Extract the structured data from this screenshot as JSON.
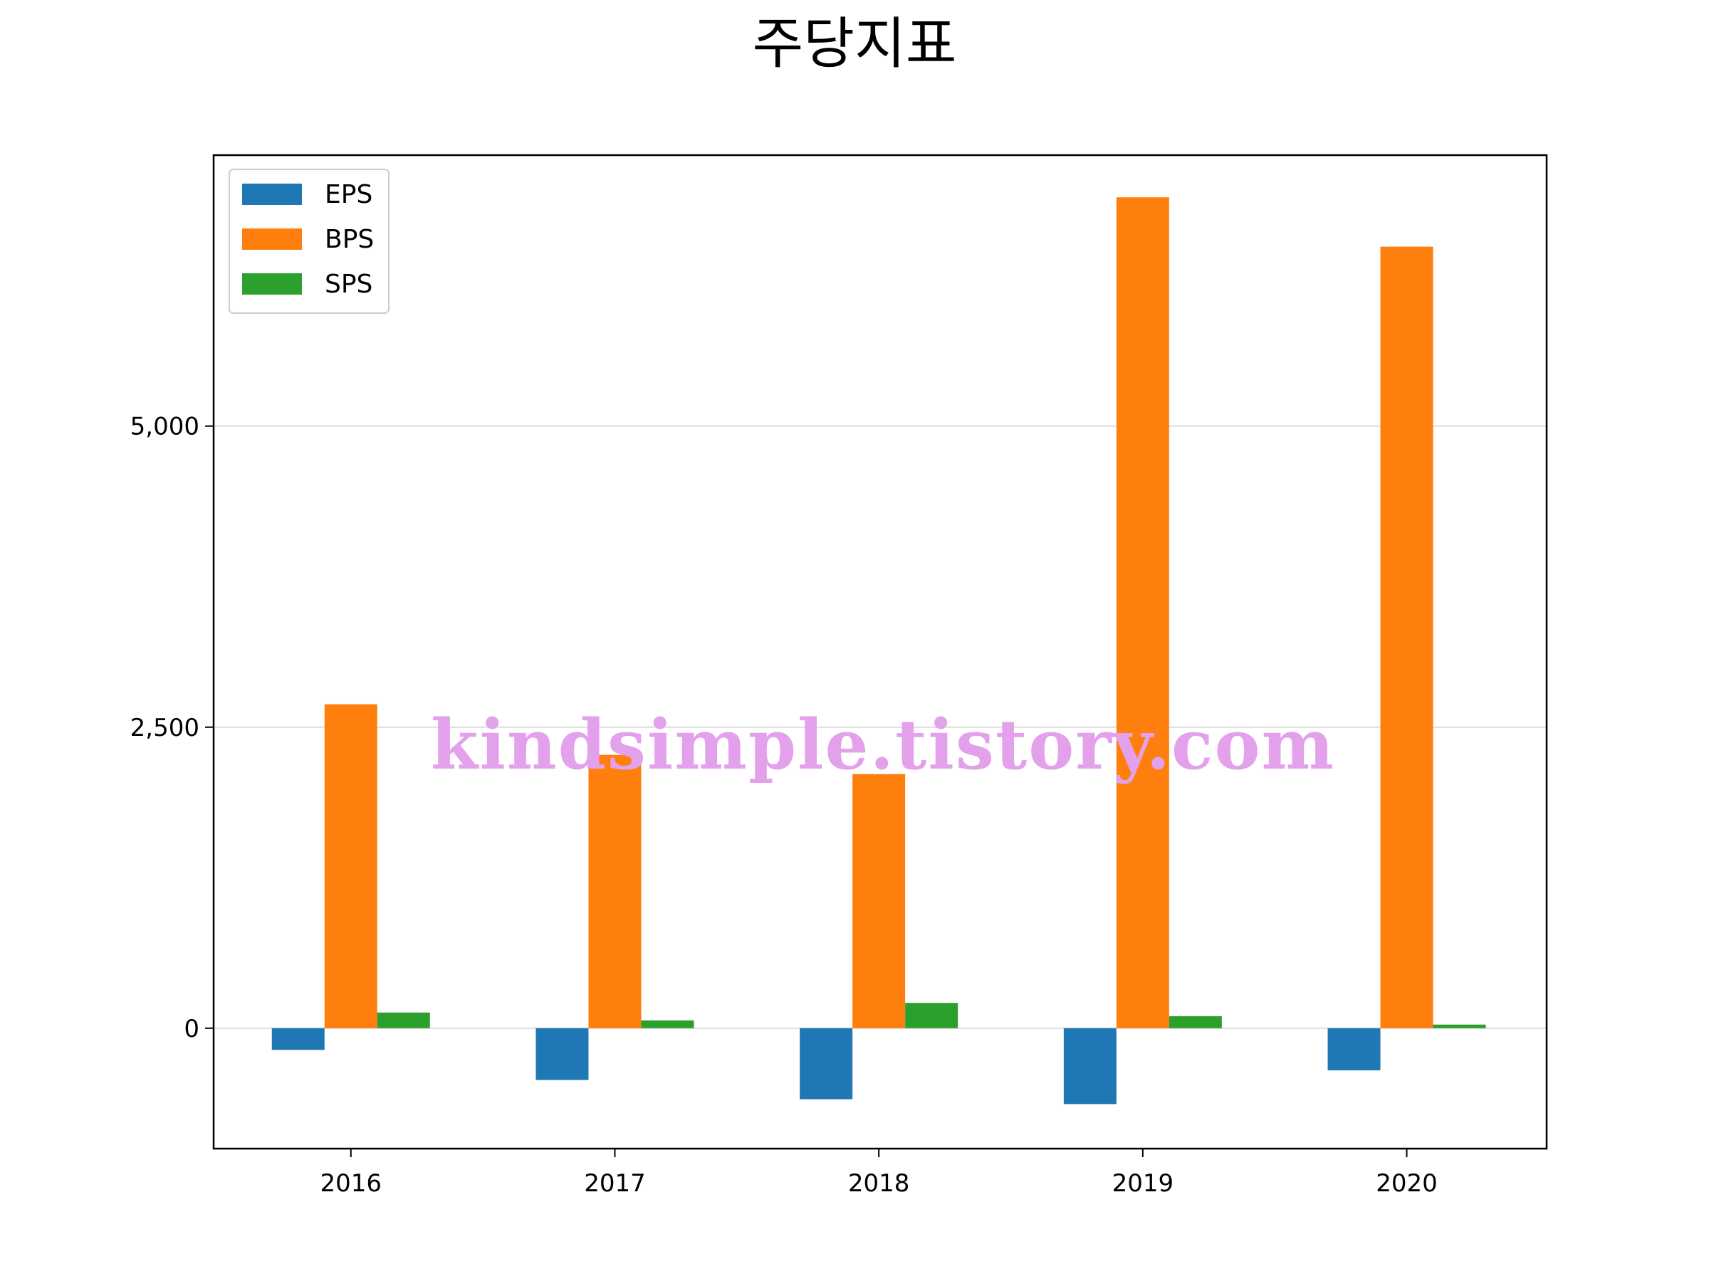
{
  "chart_data": {
    "type": "bar",
    "title": "주당지표",
    "xlabel": "",
    "ylabel": "",
    "categories": [
      "2016",
      "2017",
      "2018",
      "2019",
      "2020"
    ],
    "series": [
      {
        "name": "EPS",
        "color": "#1f77b4",
        "values": [
          -180,
          -430,
          -590,
          -630,
          -350
        ]
      },
      {
        "name": "BPS",
        "color": "#ff7f0e",
        "values": [
          2690,
          2270,
          2110,
          6900,
          6490
        ]
      },
      {
        "name": "SPS",
        "color": "#2ca02c",
        "values": [
          130,
          65,
          210,
          100,
          30
        ]
      }
    ],
    "ylim": [
      -1000,
      7250
    ],
    "yticks": [
      0,
      2500,
      5000
    ],
    "ytick_labels": [
      "0",
      "2,500",
      "5,000"
    ],
    "grid": "y",
    "legend_position": "upper-left"
  },
  "watermark": "kindsimple.tistory.com"
}
